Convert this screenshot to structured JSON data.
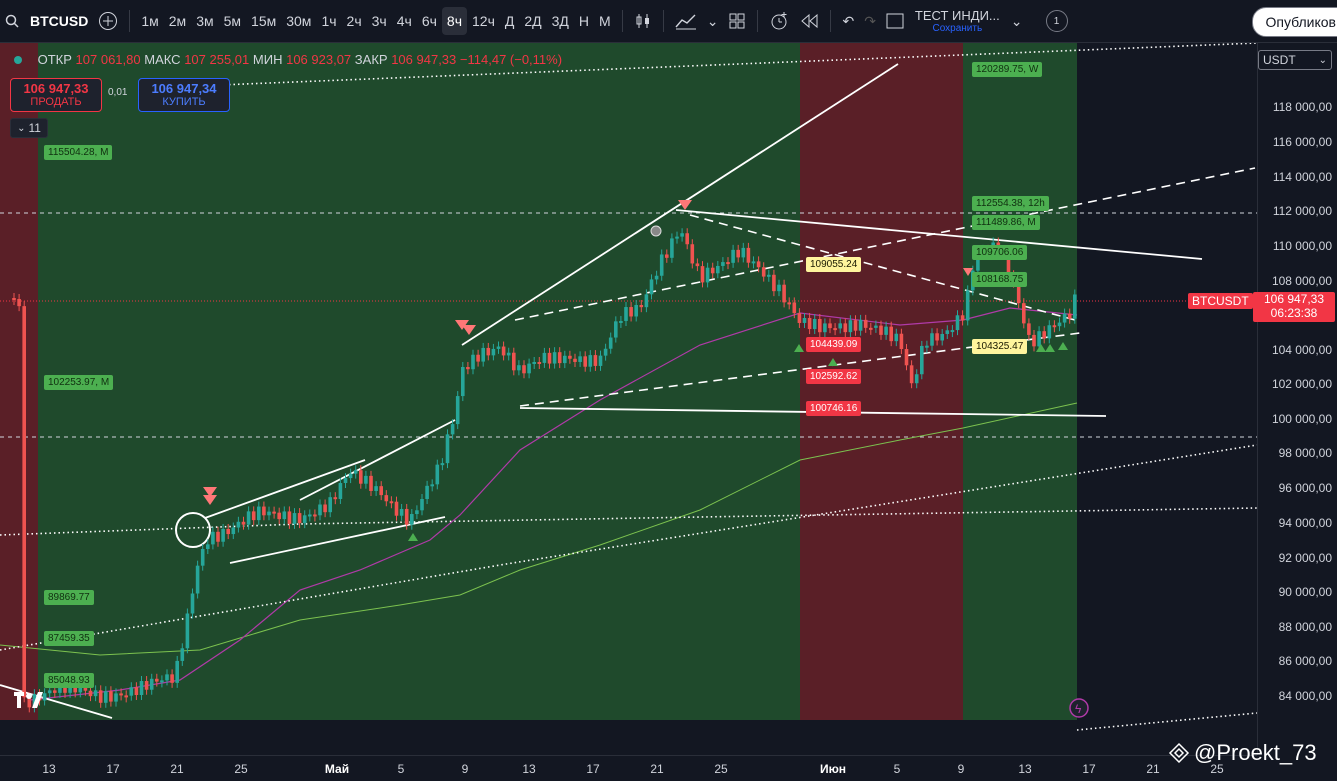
{
  "toolbar": {
    "symbol": "BTCUSD",
    "intervals": [
      "1м",
      "2м",
      "3м",
      "5м",
      "15м",
      "30м",
      "1ч",
      "2ч",
      "3ч",
      "4ч",
      "6ч",
      "8ч",
      "12ч",
      "Д",
      "2Д",
      "3Д",
      "Н",
      "М"
    ],
    "active_interval": "8ч",
    "layout_title": "ТЕСТ ИНДИ...",
    "layout_status": "Сохранить",
    "layout_count": "1",
    "publish_label": "Опубликов"
  },
  "legend": {
    "open_label": "ОТКР",
    "open": "107 061,80",
    "high_label": "МАКС",
    "high": "107 255,01",
    "low_label": "МИН",
    "low": "106 923,07",
    "close_label": "ЗАКР",
    "close": "106 947,33",
    "change": "−114,47 (−0,11%)",
    "sell_price": "106 947,33",
    "sell_label": "ПРОДАТЬ",
    "buy_price": "106 947,34",
    "buy_label": "КУПИТЬ",
    "spread": "0,01",
    "indicators_count": "11"
  },
  "price_axis": {
    "currency": "USDT",
    "ticks": [
      "118 000,00",
      "116 000,00",
      "114 000,00",
      "112 000,00",
      "110 000,00",
      "108 000,00",
      "106 000,00",
      "104 000,00",
      "102 000,00",
      "100 000,00",
      "98 000,00",
      "96 000,00",
      "94 000,00",
      "92 000,00",
      "90 000,00",
      "88 000,00",
      "86 000,00",
      "84 000,00"
    ],
    "current_price": "106 947,33",
    "countdown": "06:23:38",
    "symbol_tag": "BTCUSDT"
  },
  "time_axis": {
    "ticks": [
      "13",
      "17",
      "21",
      "25",
      "Май",
      "5",
      "9",
      "13",
      "17",
      "21",
      "25",
      "Июн",
      "5",
      "9",
      "13",
      "17",
      "21",
      "25"
    ]
  },
  "level_labels": {
    "l120289": "120289.75, W",
    "l115504": "115504.28, M",
    "l112554": "112554.38, 12h",
    "l111489": "111489.86, M",
    "l109706": "109706.06",
    "l109055": "109055.24",
    "l108168": "108168.75",
    "l104439": "104439.09",
    "l104325": "104325.47",
    "l102592": "102592.62",
    "l102253": "102253.97, M",
    "l100746": "100746.16",
    "l89869": "89869.77",
    "l87459": "87459.35",
    "l85048": "85048.93"
  },
  "watermark": "@Proekt_73",
  "colors": {
    "background": "#131722",
    "bull_zone": "#1f4a2c",
    "bear_zone": "#5a1f27",
    "up_candle": "#26a69a",
    "down_candle": "#ef5350",
    "accent_red": "#f23645",
    "accent_blue": "#2962ff"
  }
}
